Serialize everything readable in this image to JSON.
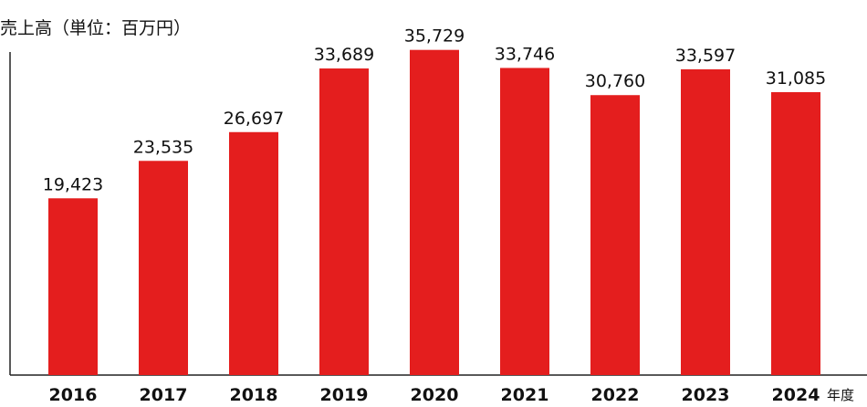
{
  "chart_data": {
    "type": "bar",
    "title": "売上高（単位：百万円）",
    "xlabel": "年度",
    "ylabel": "",
    "categories": [
      "2016",
      "2017",
      "2018",
      "2019",
      "2020",
      "2021",
      "2022",
      "2023",
      "2024"
    ],
    "values": [
      19423,
      23535,
      26697,
      33689,
      35729,
      33746,
      30760,
      33597,
      31085
    ],
    "value_labels": [
      "19,423",
      "23,535",
      "26,697",
      "33,689",
      "35,729",
      "33,746",
      "30,760",
      "33,597",
      "31,085"
    ],
    "ylim": [
      0,
      36700
    ],
    "grid": false,
    "bar_color": "#e41e1e"
  }
}
